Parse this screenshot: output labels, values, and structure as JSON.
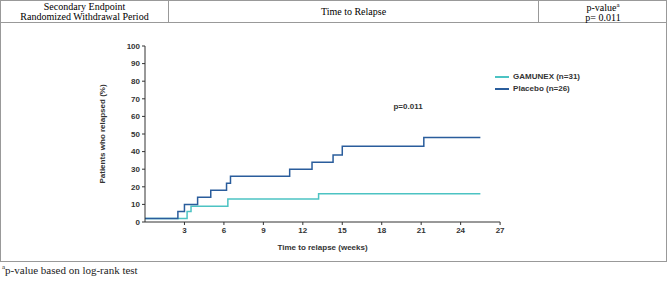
{
  "header": {
    "cells": [
      [
        "Secondary Endpoint",
        "Randomized Withdrawal Period"
      ],
      [
        "Time to Relapse"
      ],
      [
        "p-value",
        "p= 0.011"
      ]
    ],
    "superscript": "a"
  },
  "chart_data": {
    "type": "line",
    "x_label": "Time to relapse (weeks)",
    "y_label": "Patients who relapsed (%)",
    "xlim": [
      0,
      27
    ],
    "xticks": [
      3,
      6,
      9,
      12,
      15,
      18,
      21,
      24,
      27
    ],
    "ylim": [
      0,
      100
    ],
    "yticks": [
      0,
      10,
      20,
      30,
      40,
      50,
      60,
      70,
      80,
      90,
      100
    ],
    "grid": false,
    "legend": "upper right",
    "line_style": "step",
    "series": [
      {
        "name": "GAMUNEX (n=31)",
        "color": "#4cc3c3",
        "x": [
          0,
          2.9,
          3.2,
          3.5,
          6.3,
          13.2,
          25.5
        ],
        "values": [
          2,
          2,
          6,
          9,
          13,
          16,
          16
        ]
      },
      {
        "name": "Placebo (n=26)",
        "color": "#2a5d9c",
        "x": [
          0,
          2.5,
          3,
          4,
          5,
          6.2,
          6.5,
          11,
          12.7,
          14.3,
          15,
          21.2,
          25.5
        ],
        "values": [
          2,
          6,
          10,
          14,
          18,
          22,
          26,
          30,
          34,
          38,
          43,
          48,
          48
        ]
      }
    ],
    "annotations": [
      {
        "text": "p=0.011",
        "x": 20,
        "y": 66
      }
    ]
  },
  "footnote": {
    "marker": "a",
    "text": "p-value based on log-rank test"
  }
}
